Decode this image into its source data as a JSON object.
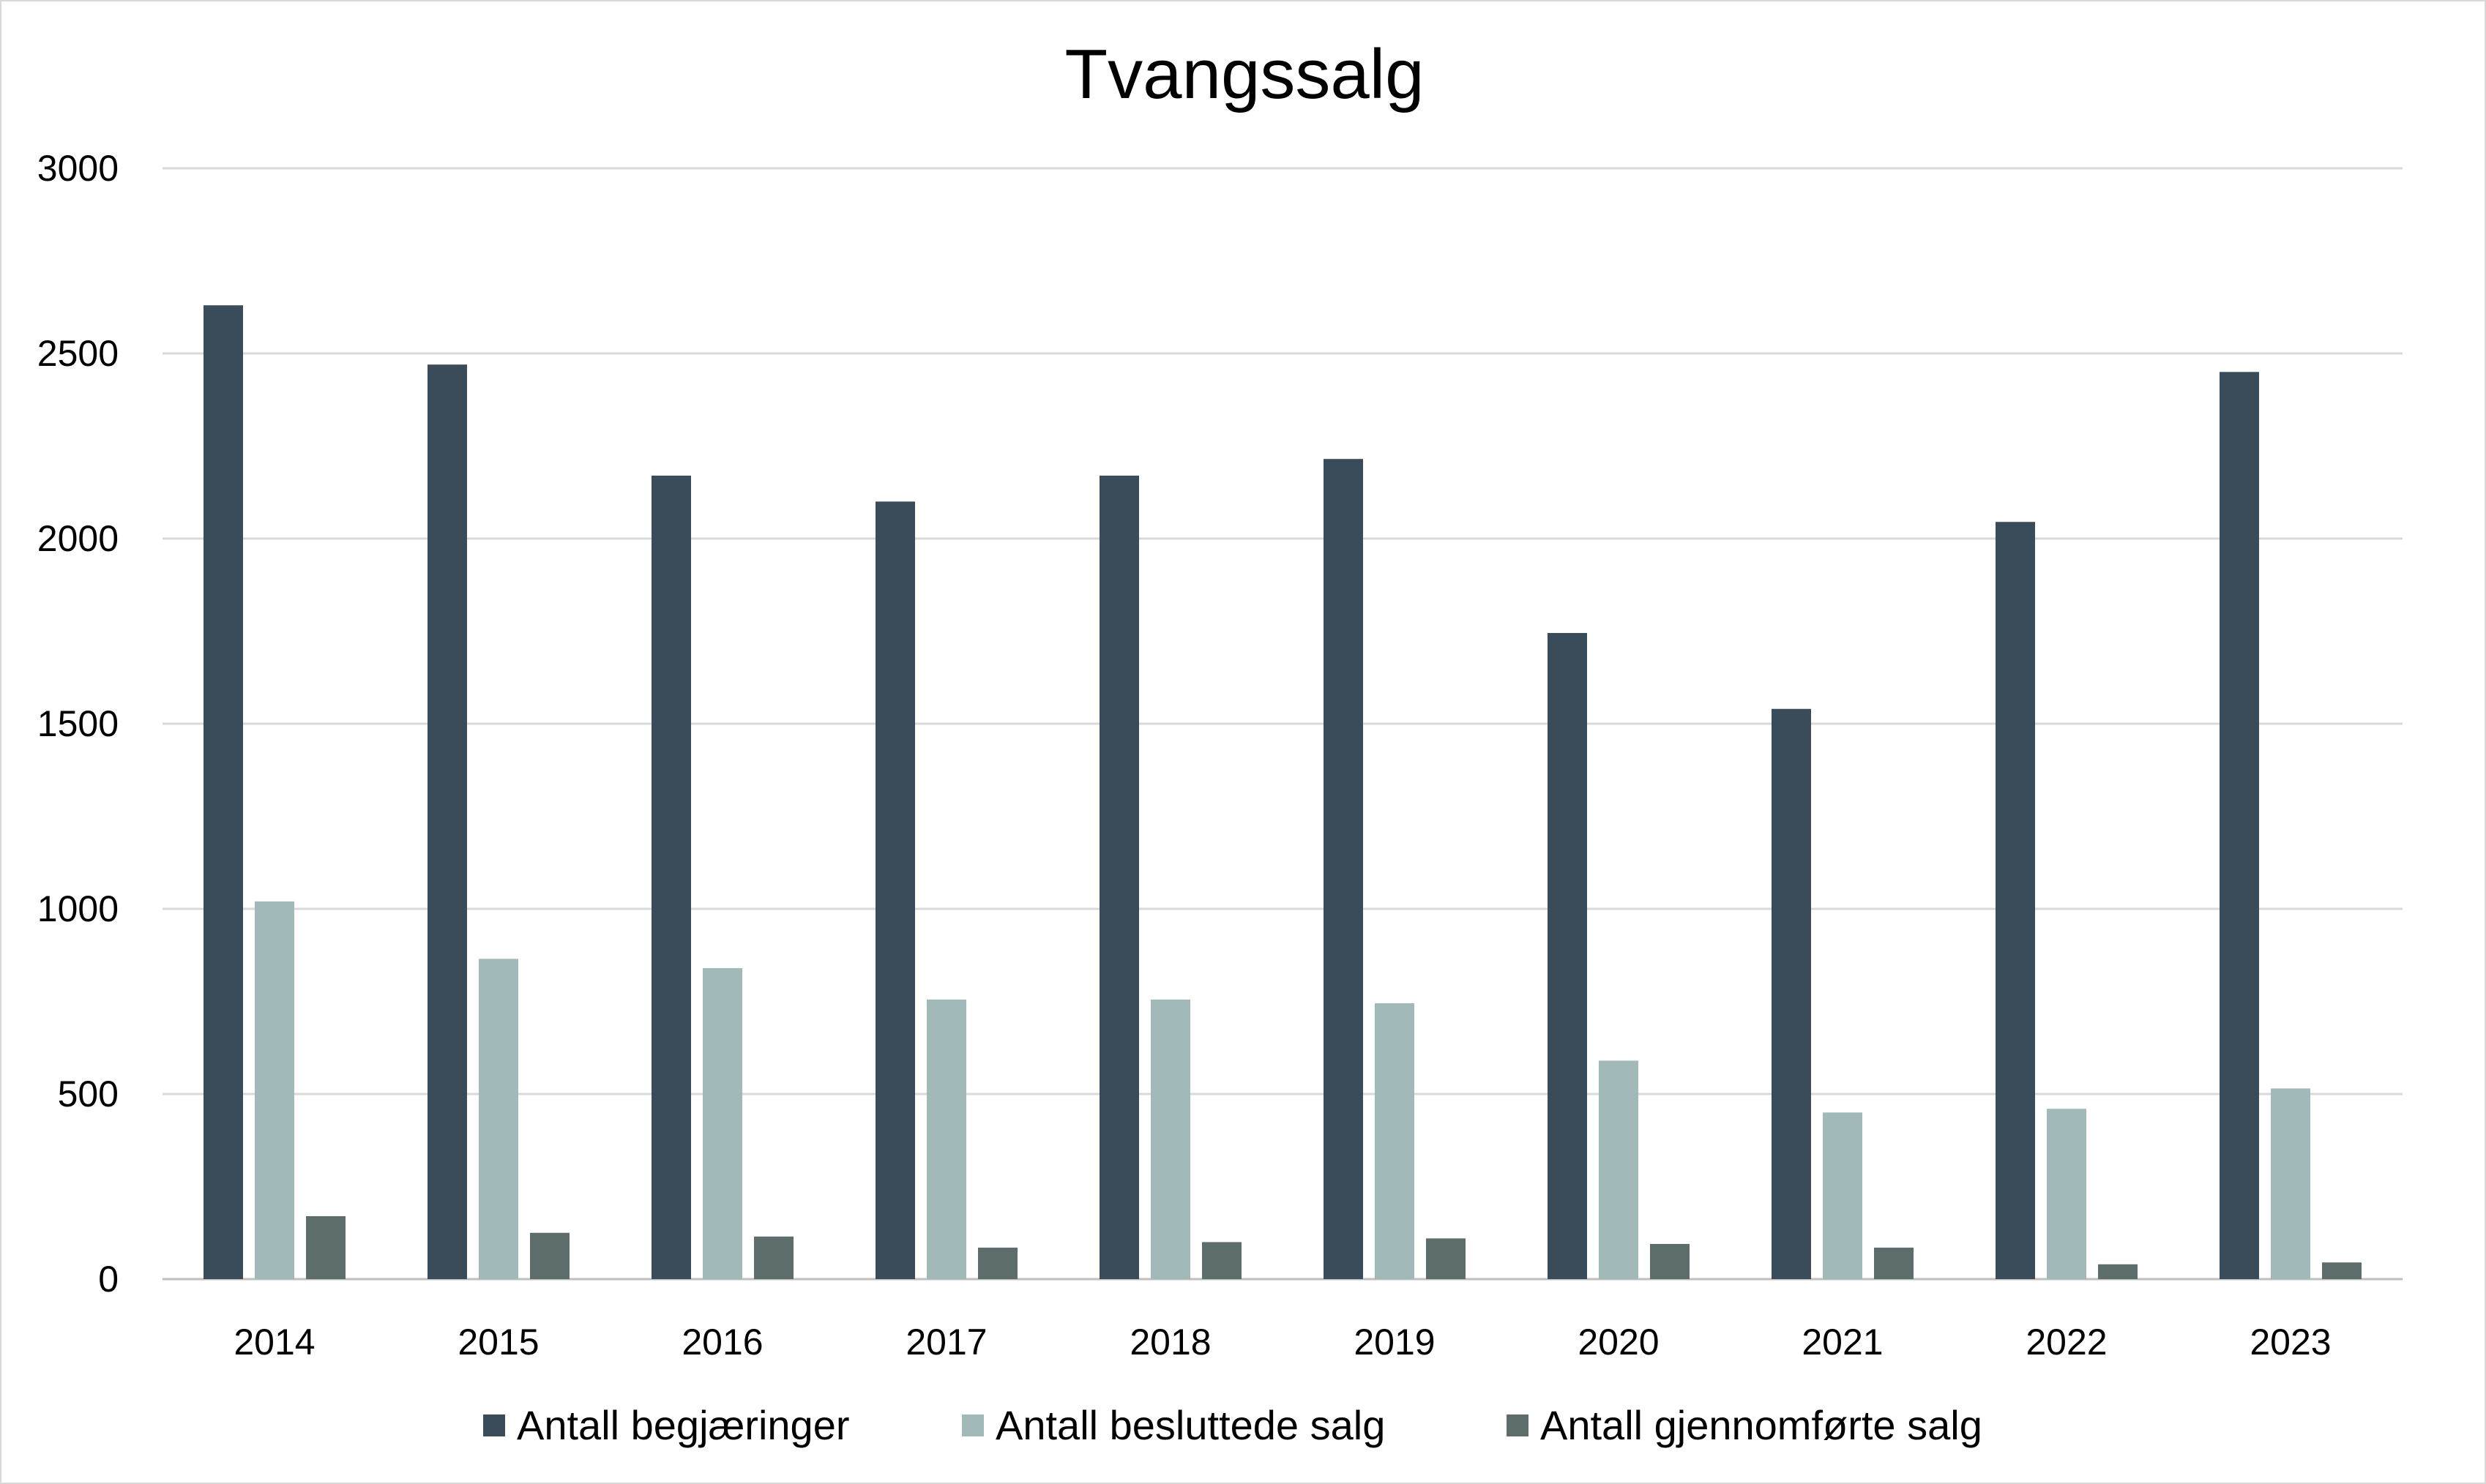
{
  "chart_data": {
    "type": "bar",
    "title": "Tvangssalg",
    "xlabel": "",
    "ylabel": "",
    "ylim": [
      0,
      3000
    ],
    "yticks": [
      "0",
      "500",
      "1000",
      "1500",
      "2000",
      "2500",
      "3000"
    ],
    "categories": [
      "2014",
      "2015",
      "2016",
      "2017",
      "2018",
      "2019",
      "2020",
      "2021",
      "2022",
      "2023"
    ],
    "grid": true,
    "legend_position": "bottom",
    "series": [
      {
        "name": "Antall begjæringer",
        "color": "#3a4c5a",
        "values": [
          2630,
          2470,
          2170,
          2100,
          2170,
          2215,
          1745,
          1540,
          2045,
          2450
        ]
      },
      {
        "name": "Antall besluttede salg",
        "color": "#a2b9ba",
        "values": [
          1020,
          865,
          840,
          755,
          755,
          745,
          590,
          450,
          460,
          515
        ]
      },
      {
        "name": "Antall gjennomførte salg",
        "color": "#5d6d6b",
        "values": [
          170,
          125,
          115,
          85,
          100,
          110,
          95,
          85,
          40,
          45
        ]
      }
    ]
  }
}
